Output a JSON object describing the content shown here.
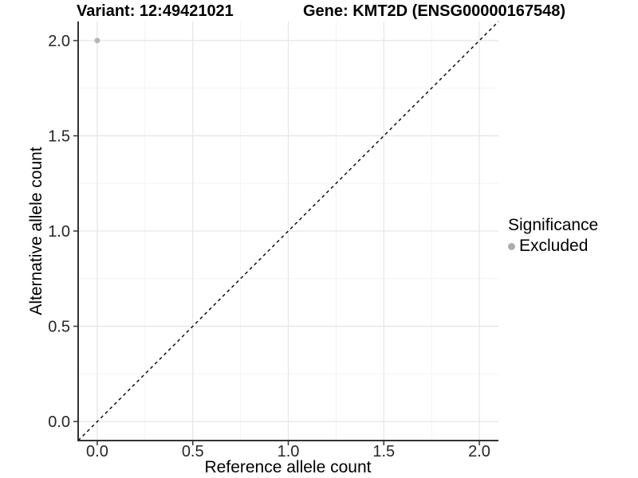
{
  "chart_data": {
    "type": "scatter",
    "title_left": "Variant: 12:49421021",
    "title_right": "Gene: KMT2D (ENSG00000167548)",
    "xlabel": "Reference allele count",
    "ylabel": "Alternative allele count",
    "xlim": [
      -0.1,
      2.1
    ],
    "ylim": [
      -0.1,
      2.1
    ],
    "x_ticks": [
      0.0,
      0.5,
      1.0,
      1.5,
      2.0
    ],
    "y_ticks": [
      0.0,
      0.5,
      1.0,
      1.5,
      2.0
    ],
    "x_tick_labels": [
      "0.0",
      "0.5",
      "1.0",
      "1.5",
      "2.0"
    ],
    "y_tick_labels": [
      "0.0",
      "0.5",
      "1.0",
      "1.5",
      "2.0"
    ],
    "x_minor_ticks": [
      0.25,
      0.75,
      1.25,
      1.75
    ],
    "y_minor_ticks": [
      0.25,
      0.75,
      1.25,
      1.75
    ],
    "grid": true,
    "reference_line": {
      "equation": "y = x",
      "style": "dashed",
      "color": "#000000"
    },
    "series": [
      {
        "name": "Excluded",
        "color": "#b5b5b5",
        "points": [
          {
            "x": 0.0,
            "y": 2.0
          }
        ]
      }
    ],
    "legend": {
      "title": "Significance",
      "position": "right",
      "items": [
        {
          "label": "Excluded",
          "color": "#adadad"
        }
      ]
    }
  },
  "colors": {
    "background": "#ffffff",
    "grid_major": "#e6e6e6",
    "grid_minor": "#f2f2f2",
    "axis_line": "#333333",
    "tick_mark": "#333333",
    "tick_label": "#262626",
    "reference_line": "#000000"
  }
}
